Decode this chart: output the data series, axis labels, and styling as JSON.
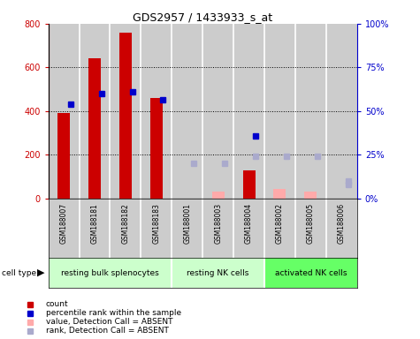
{
  "title": "GDS2957 / 1433933_s_at",
  "samples": [
    "GSM188007",
    "GSM188181",
    "GSM188182",
    "GSM188183",
    "GSM188001",
    "GSM188003",
    "GSM188004",
    "GSM188002",
    "GSM188005",
    "GSM188006"
  ],
  "count_values": [
    390,
    640,
    760,
    460,
    null,
    null,
    130,
    null,
    null,
    null
  ],
  "rank_values": [
    430,
    480,
    490,
    450,
    null,
    null,
    285,
    null,
    null,
    null
  ],
  "absent_count_values": [
    null,
    null,
    null,
    null,
    null,
    30,
    null,
    45,
    30,
    null
  ],
  "absent_rank_values": [
    null,
    null,
    null,
    null,
    20,
    null,
    null,
    null,
    null,
    10
  ],
  "absent_rank2_values": [
    null,
    null,
    null,
    null,
    null,
    20,
    24,
    24,
    24,
    8
  ],
  "cell_groups": [
    {
      "label": "resting bulk splenocytes",
      "start": 0,
      "end": 4,
      "color": "#ccffcc"
    },
    {
      "label": "resting NK cells",
      "start": 4,
      "end": 7,
      "color": "#ccffcc"
    },
    {
      "label": "activated NK cells",
      "start": 7,
      "end": 10,
      "color": "#66ff66"
    }
  ],
  "ylim_left": [
    0,
    800
  ],
  "ylim_right": [
    0,
    100
  ],
  "yticks_left": [
    0,
    200,
    400,
    600,
    800
  ],
  "yticks_right": [
    0,
    25,
    50,
    75,
    100
  ],
  "bar_color": "#cc0000",
  "rank_color": "#0000cc",
  "absent_bar_color": "#ffaaaa",
  "absent_rank_color": "#aaaacc",
  "grid_color": "black",
  "sample_bg_color": "#cccccc",
  "left_axis_color": "#cc0000",
  "right_axis_color": "#0000cc",
  "bar_width": 0.4,
  "marker_size": 5
}
